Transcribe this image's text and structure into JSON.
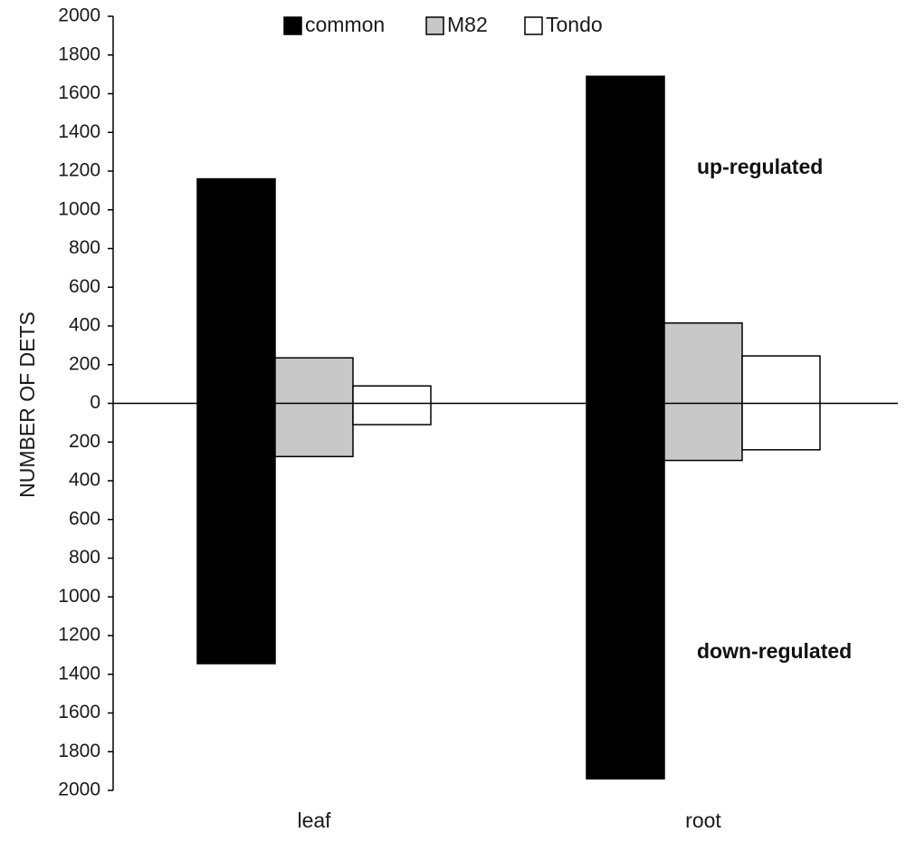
{
  "chart_data": {
    "type": "bar",
    "ylabel": "NUMBER OF DETS",
    "xlabel": "",
    "ylim": [
      -2000,
      2000
    ],
    "y_ticks": [
      "2000",
      "1800",
      "1600",
      "1400",
      "1200",
      "1000",
      "800",
      "600",
      "400",
      "200",
      "0",
      "200",
      "400",
      "600",
      "800",
      "1000",
      "1200",
      "1400",
      "1600",
      "1800",
      "2000"
    ],
    "categories": [
      "leaf",
      "root"
    ],
    "series": [
      {
        "name": "common",
        "color": "#000000",
        "up": [
          1160,
          1690
        ],
        "down": [
          1345,
          1940
        ]
      },
      {
        "name": "M82",
        "color": "#c8c8c8",
        "up": [
          235,
          415
        ],
        "down": [
          275,
          295
        ]
      },
      {
        "name": "Tondo",
        "color": "#ffffff",
        "up": [
          90,
          245
        ],
        "down": [
          110,
          240
        ]
      }
    ],
    "legend_position": "top-center",
    "annotations": {
      "up": "up-regulated",
      "down": "down-regulated"
    }
  }
}
